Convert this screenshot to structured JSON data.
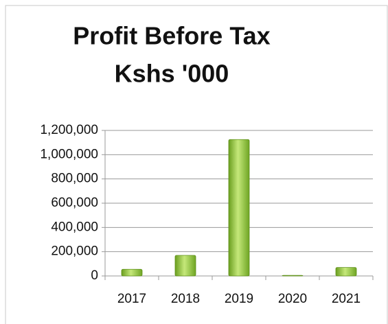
{
  "chart_data": {
    "type": "bar",
    "title": "Profit Before Tax",
    "subtitle": "Kshs '000",
    "categories": [
      "2017",
      "2018",
      "2019",
      "2020",
      "2021"
    ],
    "values": [
      55000,
      170000,
      1125000,
      5000,
      70000
    ],
    "color": "#8cc63f",
    "ylim": [
      0,
      1200000
    ],
    "yticks": [
      0,
      {
        "value": 200000,
        "label": "200,000"
      },
      {
        "value": 400000,
        "label": "400,000"
      },
      {
        "value": 600000,
        "label": "600,000"
      },
      {
        "value": 800000,
        "label": "800,000"
      },
      {
        "value": 1000000,
        "label": "1,000,000"
      },
      {
        "value": 1200000,
        "label": "1,200,000"
      }
    ],
    "grid": true
  }
}
